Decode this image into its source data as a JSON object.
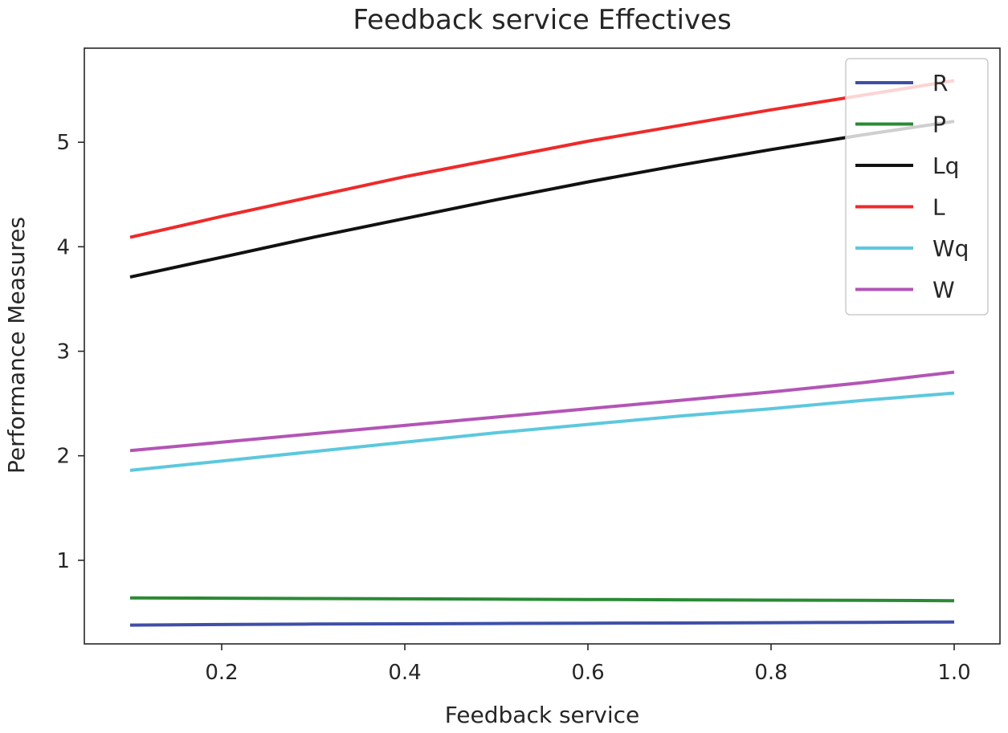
{
  "chart_data": {
    "type": "line",
    "title": "Feedback service Effectives",
    "xlabel": "Feedback service",
    "ylabel": "Performance Measures",
    "x": [
      0.1,
      0.2,
      0.3,
      0.4,
      0.5,
      0.6,
      0.7,
      0.8,
      0.9,
      1.0
    ],
    "xlim": [
      0.05,
      1.05
    ],
    "ylim": [
      0.2,
      5.9
    ],
    "xticks": [
      0.2,
      0.4,
      0.6,
      0.8,
      1.0
    ],
    "xtick_labels": [
      "0.2",
      "0.4",
      "0.6",
      "0.8",
      "1.0"
    ],
    "yticks": [
      1,
      2,
      3,
      4,
      5
    ],
    "ytick_labels": [
      "1",
      "2",
      "3",
      "4",
      "5"
    ],
    "grid": false,
    "legend_position": "top-right",
    "series": [
      {
        "name": "R",
        "color": "#3f4fa8",
        "values": [
          0.38,
          0.385,
          0.39,
          0.392,
          0.395,
          0.398,
          0.4,
          0.403,
          0.406,
          0.41
        ]
      },
      {
        "name": "P",
        "color": "#2a8a34",
        "values": [
          0.64,
          0.637,
          0.634,
          0.631,
          0.628,
          0.625,
          0.622,
          0.619,
          0.616,
          0.613
        ]
      },
      {
        "name": "Lq",
        "color": "#111111",
        "values": [
          3.71,
          3.9,
          4.09,
          4.27,
          4.45,
          4.62,
          4.78,
          4.93,
          5.07,
          5.2
        ]
      },
      {
        "name": "L",
        "color": "#ee2a2a",
        "values": [
          4.09,
          4.29,
          4.48,
          4.67,
          4.84,
          5.01,
          5.16,
          5.31,
          5.45,
          5.59
        ]
      },
      {
        "name": "Wq",
        "color": "#5cc8de",
        "values": [
          1.86,
          1.95,
          2.04,
          2.13,
          2.22,
          2.3,
          2.38,
          2.45,
          2.53,
          2.6
        ]
      },
      {
        "name": "W",
        "color": "#b355b5",
        "values": [
          2.05,
          2.13,
          2.21,
          2.29,
          2.37,
          2.45,
          2.53,
          2.61,
          2.7,
          2.8
        ]
      }
    ]
  }
}
